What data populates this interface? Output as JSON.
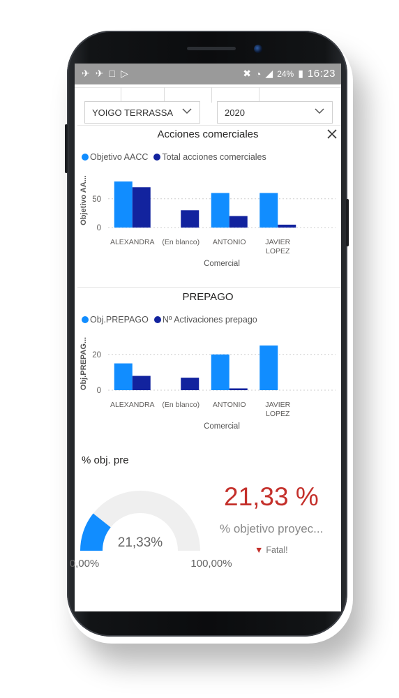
{
  "statusbar": {
    "left_icons": [
      "app-icon",
      "app-icon",
      "lock-icon",
      "media-icon"
    ],
    "battery": "24%",
    "time": "16:23"
  },
  "filters": {
    "store": "YOIGO TERRASSA",
    "year": "2020"
  },
  "charts": {
    "acciones": {
      "title": "Acciones comerciales",
      "legend": [
        "Objetivo AACC",
        "Total acciones comerciales"
      ],
      "ylabel": "Objetivo AA...",
      "xlabel": "Comercial",
      "y_ticks": [
        "0",
        "50"
      ]
    },
    "prepago": {
      "title": "PREPAGO",
      "legend": [
        "Obj.PREPAGO",
        "Nº Activaciones prepago"
      ],
      "ylabel": "Obj.PREPAG...",
      "xlabel": "Comercial",
      "y_ticks": [
        "0",
        "20"
      ]
    }
  },
  "chart_data": [
    {
      "type": "bar",
      "categories": [
        "ALEXANDRA",
        "(En blanco)",
        "ANTONIO",
        "JAVIER LOPEZ"
      ],
      "series": [
        {
          "name": "Objetivo AACC",
          "values": [
            80,
            null,
            60,
            60
          ]
        },
        {
          "name": "Total acciones comerciales",
          "values": [
            70,
            30,
            20,
            5
          ]
        }
      ],
      "title": "Acciones comerciales",
      "xlabel": "Comercial",
      "ylabel": "Objetivo AA...",
      "ylim": [
        0,
        80
      ],
      "colors": [
        "#118dff",
        "#12239e"
      ]
    },
    {
      "type": "bar",
      "categories": [
        "ALEXANDRA",
        "(En blanco)",
        "ANTONIO",
        "JAVIER LOPEZ"
      ],
      "series": [
        {
          "name": "Obj.PREPAGO",
          "values": [
            15,
            null,
            20,
            25
          ]
        },
        {
          "name": "Nº Activaciones prepago",
          "values": [
            8,
            7,
            1,
            null
          ]
        }
      ],
      "title": "PREPAGO",
      "xlabel": "Comercial",
      "ylabel": "Obj.PREPAG...",
      "ylim": [
        0,
        25
      ],
      "colors": [
        "#118dff",
        "#12239e"
      ]
    }
  ],
  "kpi": {
    "title": "% obj. pre",
    "gauge_value": "21,33%",
    "gauge_fraction": 0.2133,
    "gauge_min": "0,00%",
    "gauge_max": "100,00%",
    "card_value": "21,33 %",
    "card_label": "% objetivo proyec...",
    "card_status": "Fatal!",
    "status_color": "#c4302b",
    "accent": "#118dff"
  }
}
